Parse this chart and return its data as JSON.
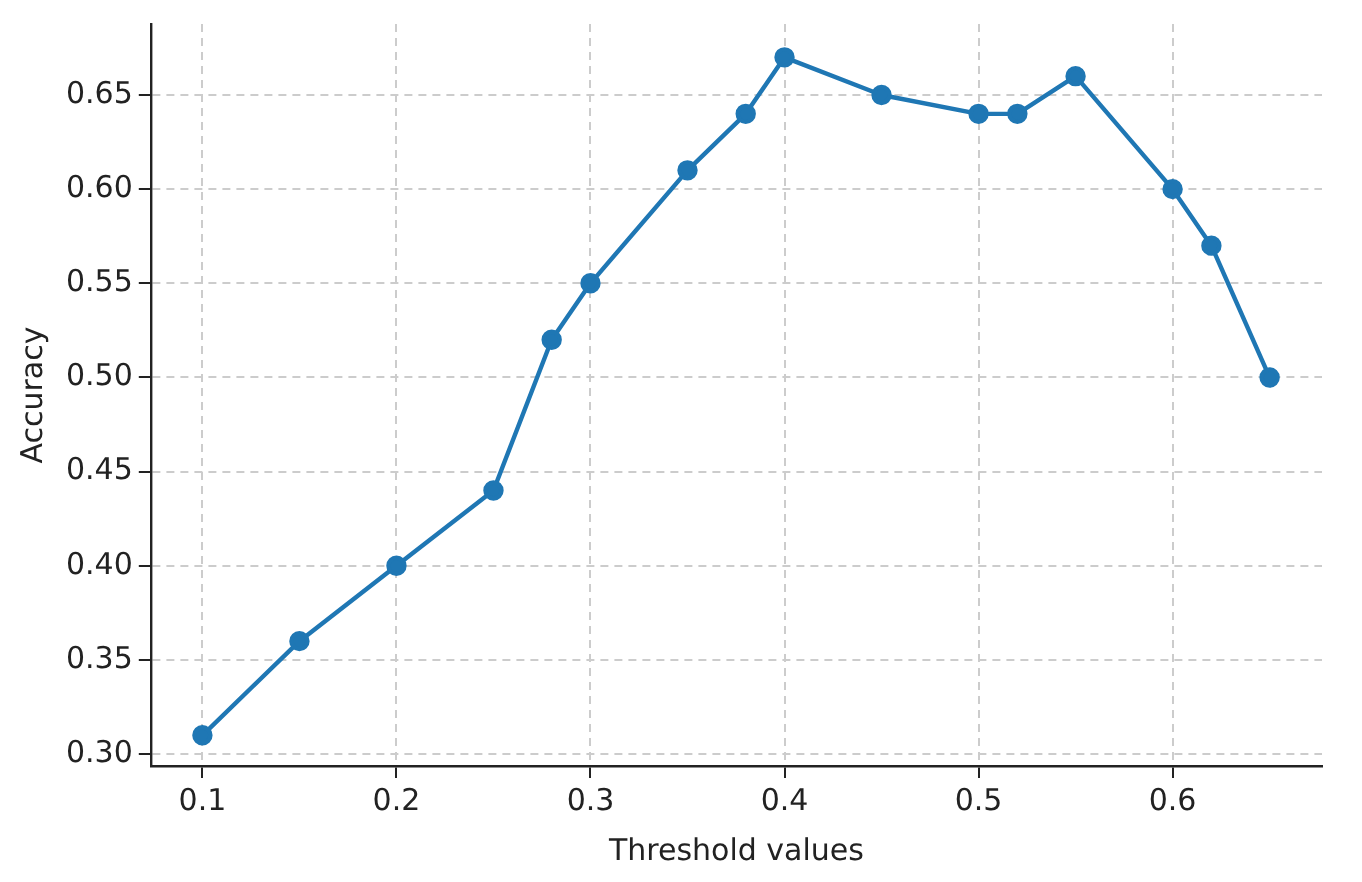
{
  "chart_data": {
    "type": "line",
    "xlabel": "Threshold values",
    "ylabel": "Accuracy",
    "x": [
      0.1,
      0.15,
      0.2,
      0.25,
      0.28,
      0.3,
      0.35,
      0.38,
      0.4,
      0.45,
      0.5,
      0.52,
      0.55,
      0.6,
      0.62,
      0.65
    ],
    "series": [
      {
        "color": "#1f77b4",
        "values": [
          0.31,
          0.36,
          0.4,
          0.44,
          0.52,
          0.55,
          0.61,
          0.64,
          0.67,
          0.65,
          0.64,
          0.64,
          0.66,
          0.6,
          0.57,
          0.5
        ]
      }
    ],
    "xlim": [
      0.0734,
      0.677
    ],
    "xticks": [
      0.1,
      0.2,
      0.3,
      0.4,
      0.5,
      0.6
    ],
    "ylim": [
      0.2937,
      0.6877
    ],
    "yticks": [
      {
        "value": 0.3,
        "label": "0.30"
      },
      {
        "value": 0.35,
        "label": "0.35"
      },
      {
        "value": 0.4,
        "label": "0.40"
      },
      {
        "value": 0.45,
        "label": "0.45"
      },
      {
        "value": 0.5,
        "label": "0.50"
      },
      {
        "value": 0.55,
        "label": "0.55"
      },
      {
        "value": 0.6,
        "label": "0.60"
      },
      {
        "value": 0.65,
        "label": "0.65"
      }
    ],
    "grid": true,
    "marker": "circle",
    "line_style": "solid"
  }
}
